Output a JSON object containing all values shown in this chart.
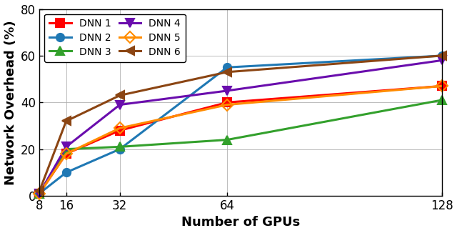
{
  "x": [
    8,
    16,
    32,
    64,
    128
  ],
  "series": [
    {
      "name": "DNN 1",
      "values": [
        1,
        18,
        28,
        40,
        47
      ],
      "color": "#ff0000",
      "marker": "s",
      "markersize": 8,
      "linewidth": 2.2,
      "markerfacecolor": "#ff0000"
    },
    {
      "name": "DNN 2",
      "values": [
        1,
        10,
        20,
        55,
        60
      ],
      "color": "#1f78b4",
      "marker": "o",
      "markersize": 8,
      "linewidth": 2.2,
      "markerfacecolor": "#1f78b4"
    },
    {
      "name": "DNN 3",
      "values": [
        1,
        20,
        21,
        24,
        41
      ],
      "color": "#33a02c",
      "marker": "^",
      "markersize": 8,
      "linewidth": 2.2,
      "markerfacecolor": "#33a02c"
    },
    {
      "name": "DNN 4",
      "values": [
        1,
        21,
        39,
        45,
        58
      ],
      "color": "#6a0dad",
      "marker": "v",
      "markersize": 9,
      "linewidth": 2.2,
      "markerfacecolor": "#6a0dad"
    },
    {
      "name": "DNN 5",
      "values": [
        1,
        18,
        29,
        39,
        47
      ],
      "color": "#ff8c00",
      "marker": "D",
      "markersize": 8,
      "linewidth": 2.2,
      "markerfacecolor": "none"
    },
    {
      "name": "DNN 6",
      "values": [
        2,
        32,
        43,
        53,
        60
      ],
      "color": "#8b4513",
      "marker": "<",
      "markersize": 8,
      "linewidth": 2.2,
      "markerfacecolor": "#8b4513"
    }
  ],
  "xlabel": "Number of GPUs",
  "ylabel": "Network Overhead (%)",
  "ylim": [
    0,
    80
  ],
  "yticks": [
    0,
    20,
    40,
    60,
    80
  ],
  "xticks": [
    8,
    16,
    32,
    64,
    128
  ],
  "grid": true,
  "legend_cols": 2,
  "background_color": "#ffffff",
  "tick_fontsize": 12,
  "label_fontsize": 13
}
